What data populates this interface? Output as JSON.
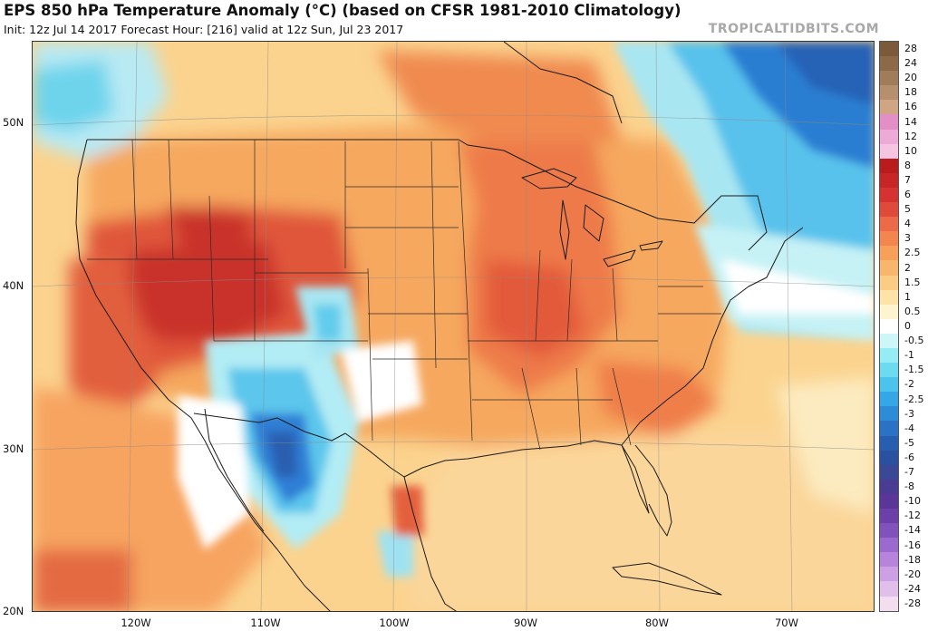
{
  "header": {
    "title": "EPS 850 hPa Temperature Anomaly (°C) (based on CFSR 1981-2010 Climatology)",
    "subtitle": "Init: 12z Jul 14 2017   Forecast Hour: [216]   valid at 12z Sun, Jul 23 2017",
    "brand": "TROPICALTIDBITS.COM"
  },
  "axes": {
    "lat_labels": [
      "50N",
      "40N",
      "30N",
      "20N"
    ],
    "lon_labels": [
      "120W",
      "110W",
      "100W",
      "90W",
      "80W",
      "70W"
    ]
  },
  "colorbar": {
    "levels": [
      "28",
      "24",
      "20",
      "18",
      "16",
      "14",
      "12",
      "10",
      "8",
      "7",
      "6",
      "5",
      "4",
      "3",
      "2.5",
      "2",
      "1.5",
      "1",
      "0.5",
      "0",
      "-0.5",
      "-1",
      "-1.5",
      "-2",
      "-2.5",
      "-3",
      "-4",
      "-5",
      "-6",
      "-7",
      "-8",
      "-10",
      "-12",
      "-14",
      "-16",
      "-18",
      "-20",
      "-24",
      "-28"
    ],
    "colors": [
      "#7a5a3a",
      "#8c6a48",
      "#a07c58",
      "#b6906c",
      "#cfa584",
      "#e48ec8",
      "#eeaad6",
      "#f4c4e2",
      "#b81c1c",
      "#c82626",
      "#d63232",
      "#e04a3a",
      "#ec6a48",
      "#f2864e",
      "#f6a05a",
      "#f8b66c",
      "#fbcc84",
      "#fde3a8",
      "#fff4d0",
      "#ffffff",
      "#ccf6f8",
      "#96ecf4",
      "#6cdaf0",
      "#4ac4ec",
      "#34a8e6",
      "#2c8cd8",
      "#2a72c4",
      "#285eb0",
      "#2a50a0",
      "#3a4896",
      "#4a3c92",
      "#5a3698",
      "#6c40a8",
      "#8252bc",
      "#9a6ace",
      "#b684da",
      "#cca0e2",
      "#e0c0ea",
      "#f2deef"
    ]
  },
  "map": {
    "ocean_base_color": "#fce6a8",
    "land_warm_color": "#f7b772",
    "hot_color": "#e06040",
    "very_hot_color": "#c8302c",
    "cold_color": "#2e7ad6",
    "cool_color": "#9ae2f2"
  }
}
